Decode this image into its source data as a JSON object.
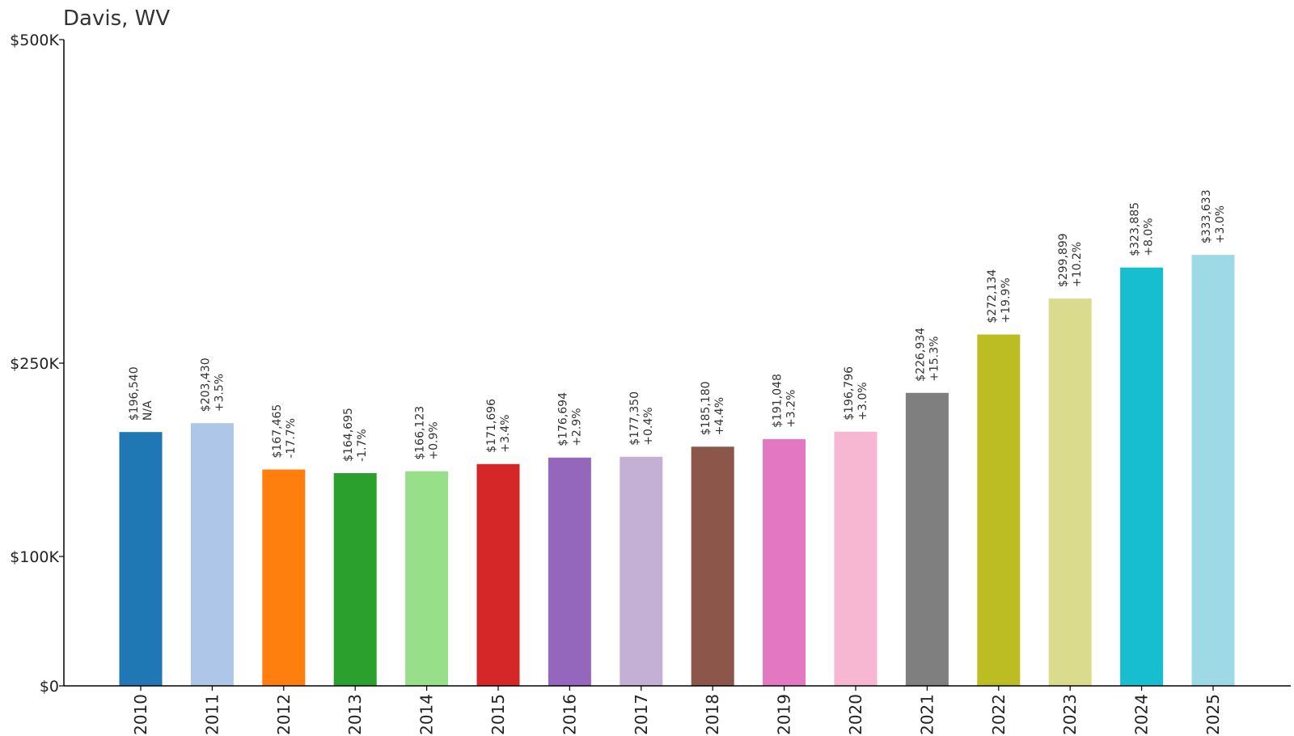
{
  "chart_data": {
    "type": "bar",
    "title": "Davis, WV",
    "xlabel": "",
    "ylabel": "",
    "categories": [
      "2010",
      "2011",
      "2012",
      "2013",
      "2014",
      "2015",
      "2016",
      "2017",
      "2018",
      "2019",
      "2020",
      "2021",
      "2022",
      "2023",
      "2024",
      "2025"
    ],
    "values": [
      196540,
      203430,
      167465,
      164695,
      166123,
      171696,
      176694,
      177350,
      185180,
      191048,
      196796,
      226934,
      272134,
      299899,
      323885,
      333633
    ],
    "value_labels": [
      "$196,540",
      "$203,430",
      "$167,465",
      "$164,695",
      "$166,123",
      "$171,696",
      "$176,694",
      "$177,350",
      "$185,180",
      "$191,048",
      "$196,796",
      "$226,934",
      "$272,134",
      "$299,899",
      "$323,885",
      "$333,633"
    ],
    "change_labels": [
      "N/A",
      "+3.5%",
      "-17.7%",
      "-1.7%",
      "+0.9%",
      "+3.4%",
      "+2.9%",
      "+0.4%",
      "+4.4%",
      "+3.2%",
      "+3.0%",
      "+15.3%",
      "+19.9%",
      "+10.2%",
      "+8.0%",
      "+3.0%"
    ],
    "colors": [
      "#1f77b4",
      "#aec7e8",
      "#ff7f0e",
      "#2ca02c",
      "#98df8a",
      "#d62728",
      "#9467bd",
      "#c5b0d5",
      "#8c564b",
      "#e377c2",
      "#f7b6d2",
      "#7f7f7f",
      "#bcbd22",
      "#dbdb8d",
      "#17becf",
      "#9edae5"
    ],
    "yticks": [
      {
        "value": 0,
        "label": "$0"
      },
      {
        "value": 100000,
        "label": "$100K"
      },
      {
        "value": 250000,
        "label": "$250K"
      },
      {
        "value": 500000,
        "label": "$500K"
      }
    ],
    "ylim": [
      0,
      500000
    ],
    "grid": false,
    "legend": "none"
  }
}
